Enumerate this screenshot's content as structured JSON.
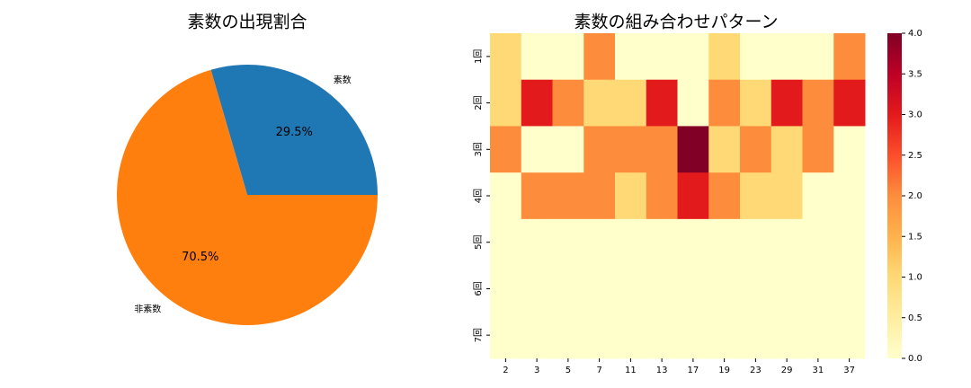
{
  "chart_data": [
    {
      "type": "pie",
      "title": "素数の出現割合",
      "categories": [
        "素数",
        "非素数"
      ],
      "values": [
        29.5,
        70.5
      ],
      "value_labels": [
        "29.5%",
        "70.5%"
      ],
      "colors": [
        "#1f77b4",
        "#ff7f0e"
      ]
    },
    {
      "type": "heatmap",
      "title": "素数の組み合わせパターン",
      "x": [
        "2",
        "3",
        "5",
        "7",
        "11",
        "13",
        "17",
        "19",
        "23",
        "29",
        "31",
        "37"
      ],
      "y": [
        "1回",
        "2回",
        "3回",
        "4回",
        "5回",
        "6回",
        "7回"
      ],
      "values": [
        [
          1,
          0,
          0,
          2,
          0,
          0,
          0,
          1,
          0,
          0,
          0,
          2
        ],
        [
          1,
          3,
          2,
          1,
          1,
          3,
          0,
          2,
          1,
          3,
          2,
          3
        ],
        [
          2,
          0,
          0,
          2,
          2,
          2,
          4,
          1,
          2,
          1,
          2,
          0
        ],
        [
          0,
          2,
          2,
          2,
          1,
          2,
          3,
          2,
          1,
          1,
          0,
          0
        ],
        [
          0,
          0,
          0,
          0,
          0,
          0,
          0,
          0,
          0,
          0,
          0,
          0
        ],
        [
          0,
          0,
          0,
          0,
          0,
          0,
          0,
          0,
          0,
          0,
          0,
          0
        ],
        [
          0,
          0,
          0,
          0,
          0,
          0,
          0,
          0,
          0,
          0,
          0,
          0
        ]
      ],
      "colormap": "YlOrRd",
      "zlim": [
        0,
        4
      ],
      "zticks": [
        {
          "value": 0,
          "label": "0.0"
        },
        {
          "value": 0.5,
          "label": "0.5"
        },
        {
          "value": 1,
          "label": "1.0"
        },
        {
          "value": 1.5,
          "label": "1.5"
        },
        {
          "value": 2,
          "label": "2.0"
        },
        {
          "value": 2.5,
          "label": "2.5"
        },
        {
          "value": 3,
          "label": "3.0"
        },
        {
          "value": 3.5,
          "label": "3.5"
        },
        {
          "value": 4,
          "label": "4.0"
        }
      ]
    }
  ]
}
